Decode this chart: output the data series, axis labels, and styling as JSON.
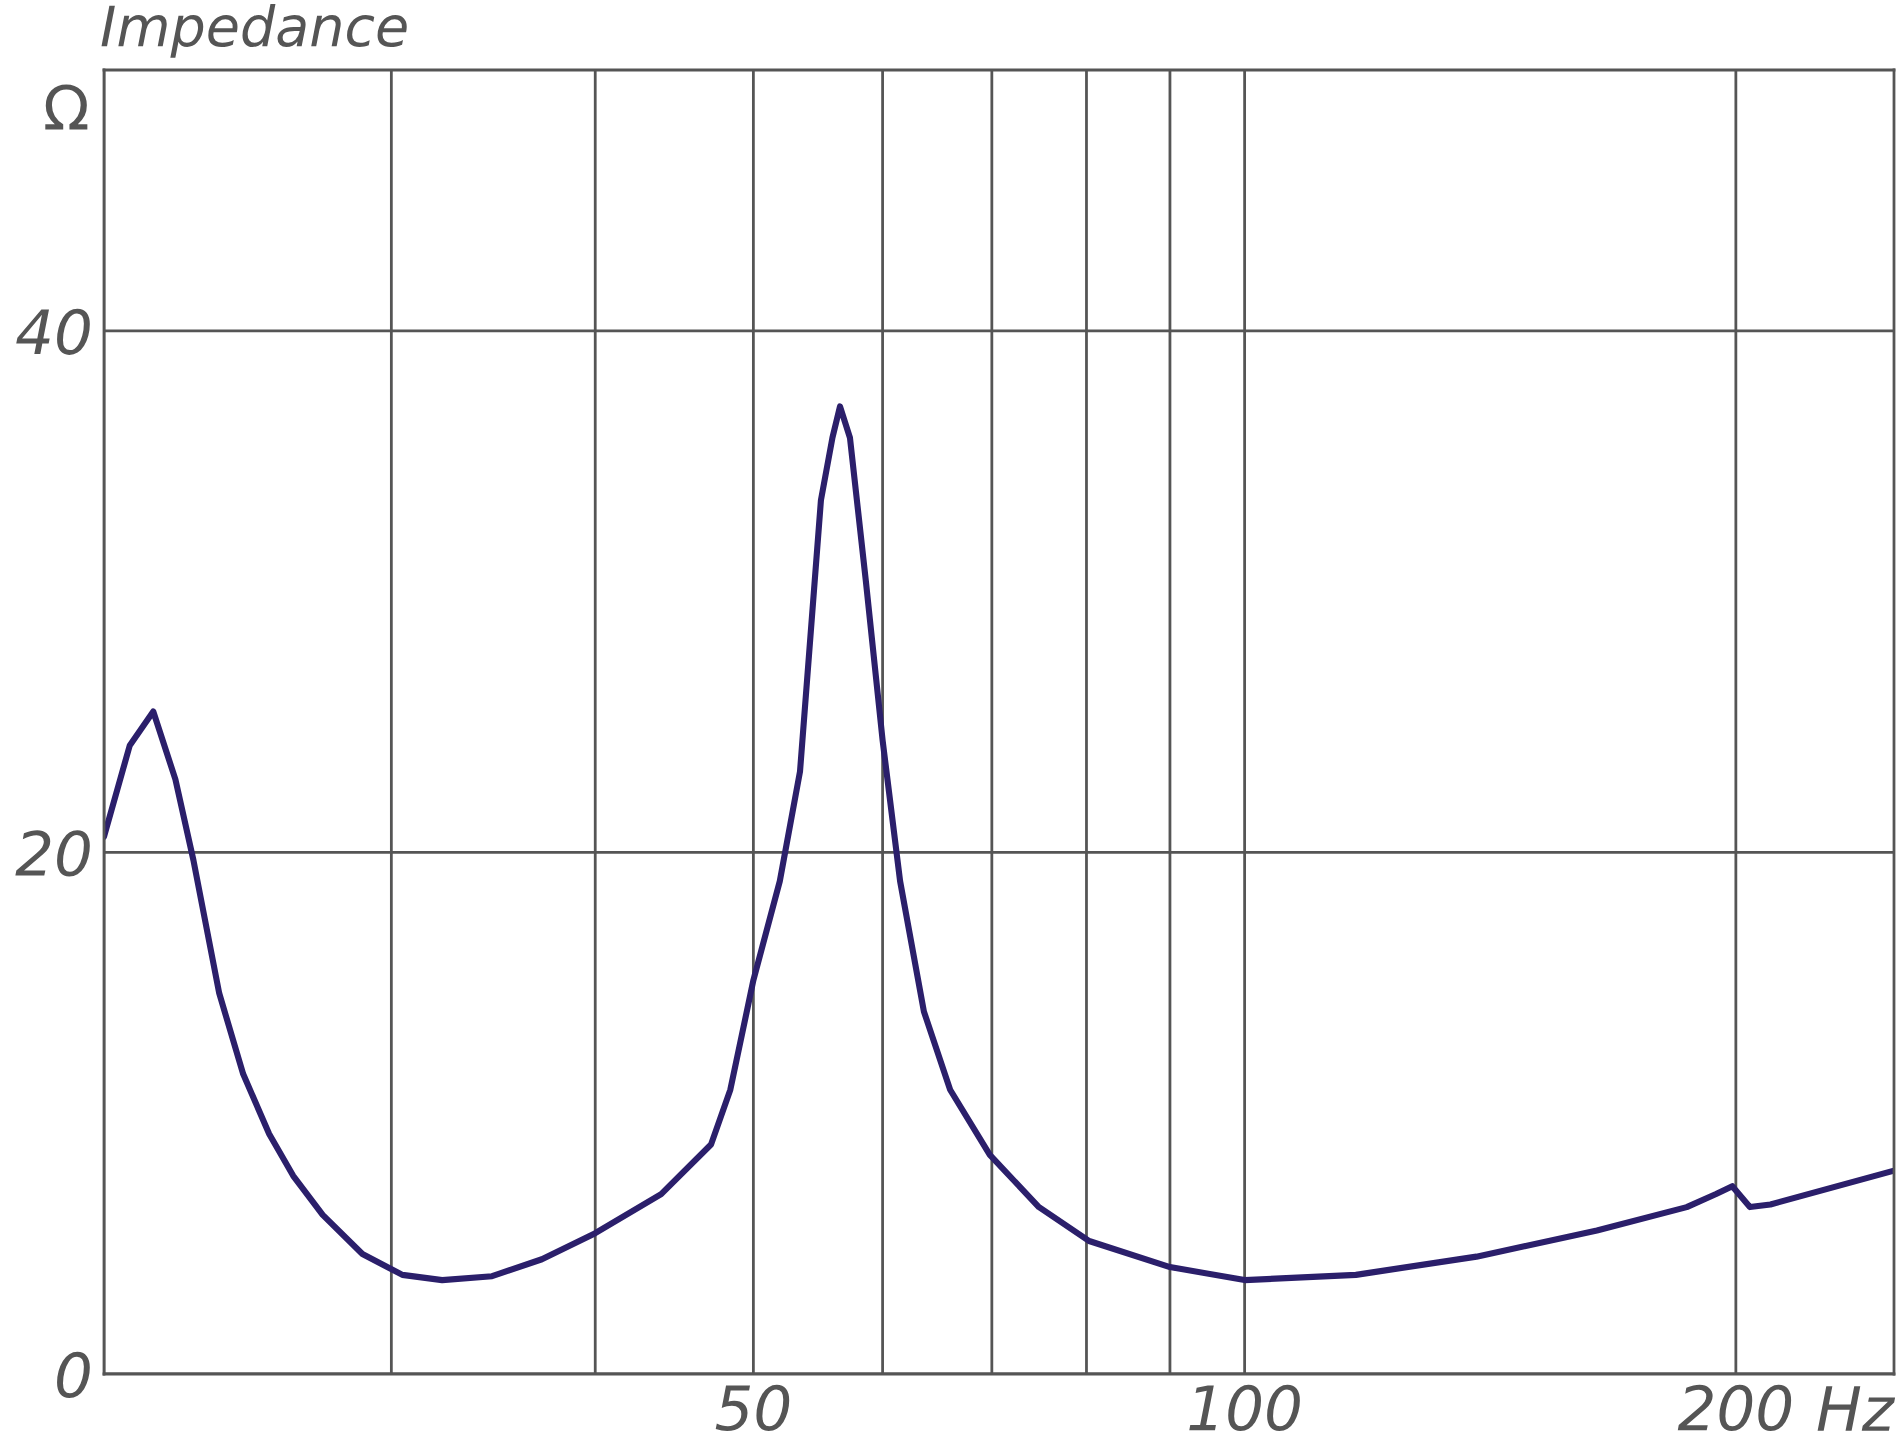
{
  "chart_data": {
    "type": "line",
    "title": "Impedance",
    "xlabel": "Hz",
    "ylabel": "Ω",
    "x": [
      20,
      20.74,
      21.44,
      22.12,
      22.69,
      23.53,
      24.34,
      25.25,
      26.12,
      27.23,
      28.8,
      30.47,
      32.23,
      34.58,
      37.1,
      40,
      43.9,
      47.1,
      48.4,
      50,
      51.9,
      53.4,
      55.0,
      55.9,
      56.5,
      57.3,
      58.6,
      60,
      61.5,
      63.6,
      66.0,
      69.8,
      74.8,
      80.3,
      90,
      100,
      117,
      138.7,
      164.4,
      186.6,
      194.5,
      199,
      204,
      210,
      250
    ],
    "series": [
      {
        "color": "#2b1f6b",
        "values": [
          20.6,
          24.1,
          25.4,
          22.8,
          19.7,
          14.6,
          11.5,
          9.2,
          7.6,
          6.1,
          4.6,
          3.8,
          3.6,
          3.75,
          4.4,
          5.4,
          6.9,
          8.8,
          10.9,
          15.1,
          18.9,
          23.1,
          33.5,
          35.9,
          37.1,
          35.9,
          30.4,
          24.3,
          18.9,
          13.9,
          10.9,
          8.4,
          6.4,
          5.1,
          4.1,
          3.6,
          3.8,
          4.5,
          5.5,
          6.4,
          6.9,
          7.2,
          6.4,
          6.5,
          7.8
        ]
      }
    ],
    "log": "x",
    "xlim": [
      20,
      250
    ],
    "xticks": [
      {
        "value": 20,
        "label": null
      },
      {
        "value": 30,
        "label": null
      },
      {
        "value": 40,
        "label": null
      },
      50,
      {
        "value": 60,
        "label": null
      },
      {
        "value": 70,
        "label": null
      },
      {
        "value": 80,
        "label": null
      },
      {
        "value": 90,
        "label": null
      },
      100,
      200
    ],
    "ylim": [
      0,
      50
    ],
    "yticks": [
      0,
      20,
      40
    ],
    "grid": true,
    "line_style": "solid"
  }
}
